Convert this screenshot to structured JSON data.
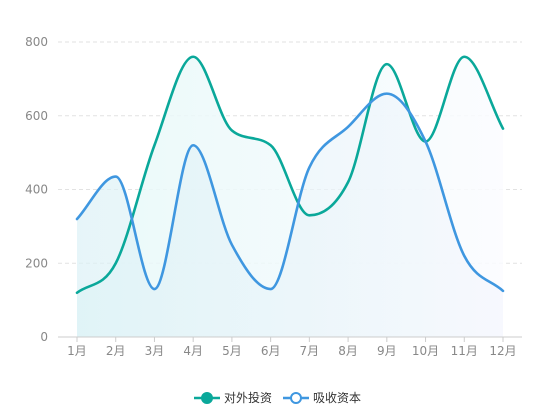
{
  "chart_data": {
    "type": "line",
    "smooth": true,
    "area_fill": true,
    "categories": [
      "1月",
      "2月",
      "3月",
      "4月",
      "5月",
      "6月",
      "7月",
      "8月",
      "9月",
      "10月",
      "11月",
      "12月"
    ],
    "ylim": [
      0,
      800
    ],
    "yticks": [
      0,
      200,
      400,
      600,
      800
    ],
    "grid": true,
    "legend_position": "bottom",
    "series": [
      {
        "name": "对外投资",
        "color": "#0aa89a",
        "values": [
          120,
          200,
          520,
          760,
          560,
          520,
          330,
          420,
          740,
          530,
          760,
          565
        ]
      },
      {
        "name": "吸收资本",
        "color": "#3f97e0",
        "values": [
          320,
          435,
          130,
          520,
          250,
          130,
          460,
          570,
          660,
          530,
          220,
          125
        ]
      }
    ]
  }
}
